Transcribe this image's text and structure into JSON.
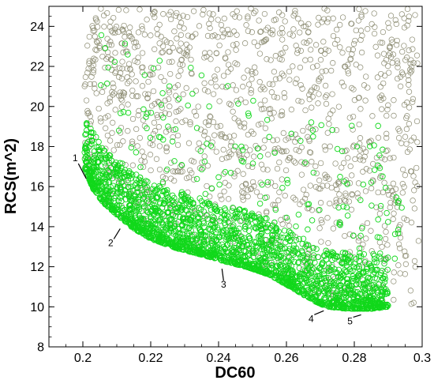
{
  "chart_data": {
    "type": "scatter",
    "xlabel": "DC60",
    "ylabel": "RCS(m^2)",
    "xlim": [
      0.19,
      0.3
    ],
    "ylim": [
      8,
      25
    ],
    "x_ticks": [
      "0.2",
      "0.22",
      "0.24",
      "0.26",
      "0.28",
      "0.3"
    ],
    "y_ticks": [
      "8",
      "10",
      "12",
      "14",
      "16",
      "18",
      "20",
      "22",
      "24"
    ],
    "grid": false,
    "marker": "open-circle",
    "colors": {
      "dominated": "#8c8c72",
      "pareto": "#11d81b",
      "axis": "#000000"
    },
    "pareto_front": [
      {
        "x": 0.201,
        "y": 16.4
      },
      {
        "x": 0.203,
        "y": 15.6
      },
      {
        "x": 0.206,
        "y": 14.9
      },
      {
        "x": 0.21,
        "y": 14.3
      },
      {
        "x": 0.215,
        "y": 13.6
      },
      {
        "x": 0.22,
        "y": 13.1
      },
      {
        "x": 0.228,
        "y": 12.6
      },
      {
        "x": 0.235,
        "y": 12.3
      },
      {
        "x": 0.241,
        "y": 12.0
      },
      {
        "x": 0.248,
        "y": 11.7
      },
      {
        "x": 0.255,
        "y": 11.3
      },
      {
        "x": 0.262,
        "y": 10.6
      },
      {
        "x": 0.268,
        "y": 10.0
      },
      {
        "x": 0.272,
        "y": 9.7
      },
      {
        "x": 0.278,
        "y": 9.6
      },
      {
        "x": 0.285,
        "y": 9.6
      },
      {
        "x": 0.29,
        "y": 9.7
      }
    ],
    "annotations": [
      {
        "label": "1",
        "x": 0.201,
        "y": 16.4
      },
      {
        "label": "2",
        "x": 0.211,
        "y": 13.9
      },
      {
        "label": "3",
        "x": 0.241,
        "y": 11.9
      },
      {
        "label": "4",
        "x": 0.271,
        "y": 9.8
      },
      {
        "label": "5",
        "x": 0.282,
        "y": 9.6
      }
    ],
    "series": [
      {
        "name": "",
        "role": "dominated",
        "count": 1300,
        "y_upper_bound": 25
      },
      {
        "name": "",
        "role": "near-front",
        "count": 2200
      }
    ]
  }
}
